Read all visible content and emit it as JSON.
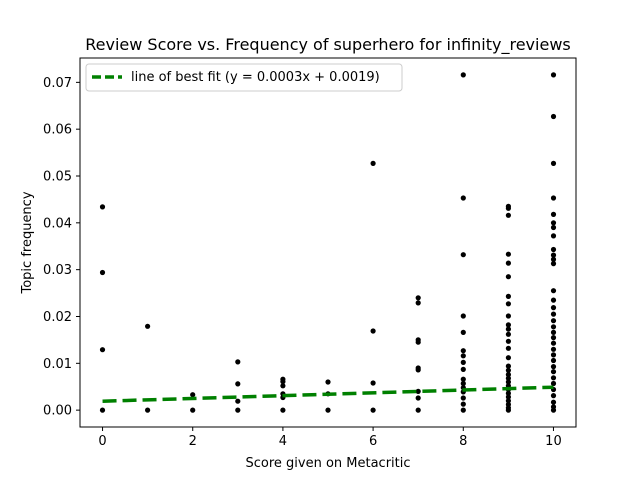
{
  "chart_data": {
    "type": "scatter",
    "title": "Review Score vs. Frequency of superhero for infinity_reviews",
    "xlabel": "Score given on Metacritic",
    "ylabel": "Topic frequency",
    "xlim": [
      -0.5,
      10.5
    ],
    "ylim": [
      -0.0036,
      0.0752
    ],
    "xticks": [
      0,
      2,
      4,
      6,
      8,
      10
    ],
    "yticks": [
      0.0,
      0.01,
      0.02,
      0.03,
      0.04,
      0.05,
      0.06,
      0.07
    ],
    "ytick_labels": [
      "0.00",
      "0.01",
      "0.02",
      "0.03",
      "0.04",
      "0.05",
      "0.06",
      "0.07"
    ],
    "grid": false,
    "legend_position": "top-left",
    "point_color": "#000000",
    "fit_color": "#008000",
    "fit_line": {
      "label": "line of best fit (y = 0.0003x + 0.0019)",
      "slope": 0.0003,
      "intercept": 0.0019,
      "x_range": [
        0,
        10
      ],
      "style": "dashed"
    },
    "points": [
      {
        "x": 0,
        "y": 0.0
      },
      {
        "x": 0,
        "y": 0.0129
      },
      {
        "x": 0,
        "y": 0.0294
      },
      {
        "x": 0,
        "y": 0.0434
      },
      {
        "x": 1,
        "y": 0.0
      },
      {
        "x": 1,
        "y": 0.0179
      },
      {
        "x": 2,
        "y": 0.0
      },
      {
        "x": 2,
        "y": 0.0033
      },
      {
        "x": 3,
        "y": 0.0
      },
      {
        "x": 3,
        "y": 0.0019
      },
      {
        "x": 3,
        "y": 0.0056
      },
      {
        "x": 3,
        "y": 0.0103
      },
      {
        "x": 4,
        "y": 0.0
      },
      {
        "x": 4,
        "y": 0.0027
      },
      {
        "x": 4,
        "y": 0.0035
      },
      {
        "x": 4,
        "y": 0.0052
      },
      {
        "x": 4,
        "y": 0.0061
      },
      {
        "x": 4,
        "y": 0.0066
      },
      {
        "x": 5,
        "y": 0.0
      },
      {
        "x": 5,
        "y": 0.0035
      },
      {
        "x": 5,
        "y": 0.006
      },
      {
        "x": 6,
        "y": 0.0
      },
      {
        "x": 6,
        "y": 0.0058
      },
      {
        "x": 6,
        "y": 0.0169
      },
      {
        "x": 6,
        "y": 0.0527
      },
      {
        "x": 7,
        "y": 0.0
      },
      {
        "x": 7,
        "y": 0.0026
      },
      {
        "x": 7,
        "y": 0.004
      },
      {
        "x": 7,
        "y": 0.0086
      },
      {
        "x": 7,
        "y": 0.009
      },
      {
        "x": 7,
        "y": 0.0145
      },
      {
        "x": 7,
        "y": 0.015
      },
      {
        "x": 7,
        "y": 0.0229
      },
      {
        "x": 7,
        "y": 0.024
      },
      {
        "x": 8,
        "y": 0.0
      },
      {
        "x": 8,
        "y": 0.0013
      },
      {
        "x": 8,
        "y": 0.0026
      },
      {
        "x": 8,
        "y": 0.0039
      },
      {
        "x": 8,
        "y": 0.0048
      },
      {
        "x": 8,
        "y": 0.0057
      },
      {
        "x": 8,
        "y": 0.0066
      },
      {
        "x": 8,
        "y": 0.0087
      },
      {
        "x": 8,
        "y": 0.0102
      },
      {
        "x": 8,
        "y": 0.0116
      },
      {
        "x": 8,
        "y": 0.0127
      },
      {
        "x": 8,
        "y": 0.0166
      },
      {
        "x": 8,
        "y": 0.0201
      },
      {
        "x": 8,
        "y": 0.0332
      },
      {
        "x": 8,
        "y": 0.0453
      },
      {
        "x": 8,
        "y": 0.0716
      },
      {
        "x": 9,
        "y": 0.0
      },
      {
        "x": 9,
        "y": 0.0005
      },
      {
        "x": 9,
        "y": 0.0012
      },
      {
        "x": 9,
        "y": 0.002
      },
      {
        "x": 9,
        "y": 0.0028
      },
      {
        "x": 9,
        "y": 0.0036
      },
      {
        "x": 9,
        "y": 0.0044
      },
      {
        "x": 9,
        "y": 0.0052
      },
      {
        "x": 9,
        "y": 0.006
      },
      {
        "x": 9,
        "y": 0.0068
      },
      {
        "x": 9,
        "y": 0.0076
      },
      {
        "x": 9,
        "y": 0.0085
      },
      {
        "x": 9,
        "y": 0.0094
      },
      {
        "x": 9,
        "y": 0.0112
      },
      {
        "x": 9,
        "y": 0.0132
      },
      {
        "x": 9,
        "y": 0.0147
      },
      {
        "x": 9,
        "y": 0.0162
      },
      {
        "x": 9,
        "y": 0.0173
      },
      {
        "x": 9,
        "y": 0.0182
      },
      {
        "x": 9,
        "y": 0.0201
      },
      {
        "x": 9,
        "y": 0.0227
      },
      {
        "x": 9,
        "y": 0.0243
      },
      {
        "x": 9,
        "y": 0.0285
      },
      {
        "x": 9,
        "y": 0.0314
      },
      {
        "x": 9,
        "y": 0.0333
      },
      {
        "x": 9,
        "y": 0.0416
      },
      {
        "x": 9,
        "y": 0.0431
      },
      {
        "x": 9,
        "y": 0.0435
      },
      {
        "x": 10,
        "y": 0.0
      },
      {
        "x": 10,
        "y": 0.0007
      },
      {
        "x": 10,
        "y": 0.0017
      },
      {
        "x": 10,
        "y": 0.0031
      },
      {
        "x": 10,
        "y": 0.0044
      },
      {
        "x": 10,
        "y": 0.0057
      },
      {
        "x": 10,
        "y": 0.0069
      },
      {
        "x": 10,
        "y": 0.0082
      },
      {
        "x": 10,
        "y": 0.0093
      },
      {
        "x": 10,
        "y": 0.0106
      },
      {
        "x": 10,
        "y": 0.0118
      },
      {
        "x": 10,
        "y": 0.013
      },
      {
        "x": 10,
        "y": 0.0143
      },
      {
        "x": 10,
        "y": 0.0155
      },
      {
        "x": 10,
        "y": 0.0166
      },
      {
        "x": 10,
        "y": 0.0178
      },
      {
        "x": 10,
        "y": 0.0191
      },
      {
        "x": 10,
        "y": 0.0205
      },
      {
        "x": 10,
        "y": 0.0219
      },
      {
        "x": 10,
        "y": 0.0235
      },
      {
        "x": 10,
        "y": 0.0255
      },
      {
        "x": 10,
        "y": 0.0313
      },
      {
        "x": 10,
        "y": 0.0322
      },
      {
        "x": 10,
        "y": 0.0331
      },
      {
        "x": 10,
        "y": 0.0343
      },
      {
        "x": 10,
        "y": 0.0372
      },
      {
        "x": 10,
        "y": 0.039
      },
      {
        "x": 10,
        "y": 0.04
      },
      {
        "x": 10,
        "y": 0.0418
      },
      {
        "x": 10,
        "y": 0.0453
      },
      {
        "x": 10,
        "y": 0.0527
      },
      {
        "x": 10,
        "y": 0.0627
      },
      {
        "x": 10,
        "y": 0.0716
      }
    ]
  }
}
